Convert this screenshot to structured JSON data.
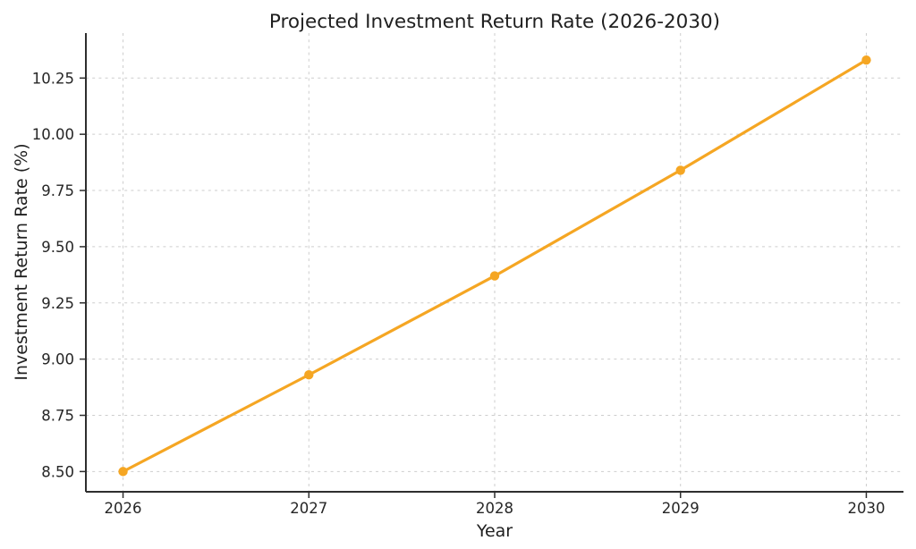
{
  "chart_data": {
    "type": "line",
    "title": "Projected Investment Return Rate (2026-2030)",
    "xlabel": "Year",
    "ylabel": "Investment Return Rate (%)",
    "x": [
      2026,
      2027,
      2028,
      2029,
      2030
    ],
    "series": [
      {
        "values": [
          8.5,
          8.93,
          9.37,
          9.84,
          10.33
        ],
        "color": "#F5A623",
        "marker": "circle"
      }
    ],
    "xticks": [
      2026,
      2027,
      2028,
      2029,
      2030
    ],
    "yticks": [
      8.5,
      8.75,
      9.0,
      9.25,
      9.5,
      9.75,
      10.0,
      10.25
    ],
    "xlim": [
      2025.8,
      2030.2
    ],
    "ylim": [
      8.41,
      10.45
    ],
    "grid": true,
    "grid_linestyle": "dashed",
    "legend_position": "none",
    "style": {
      "line_color": "#F5A623",
      "grid_color": "#cdcdcd",
      "spine_color": "#2e2e2e",
      "text_color": "#1f1f1f",
      "background": "#ffffff"
    }
  }
}
